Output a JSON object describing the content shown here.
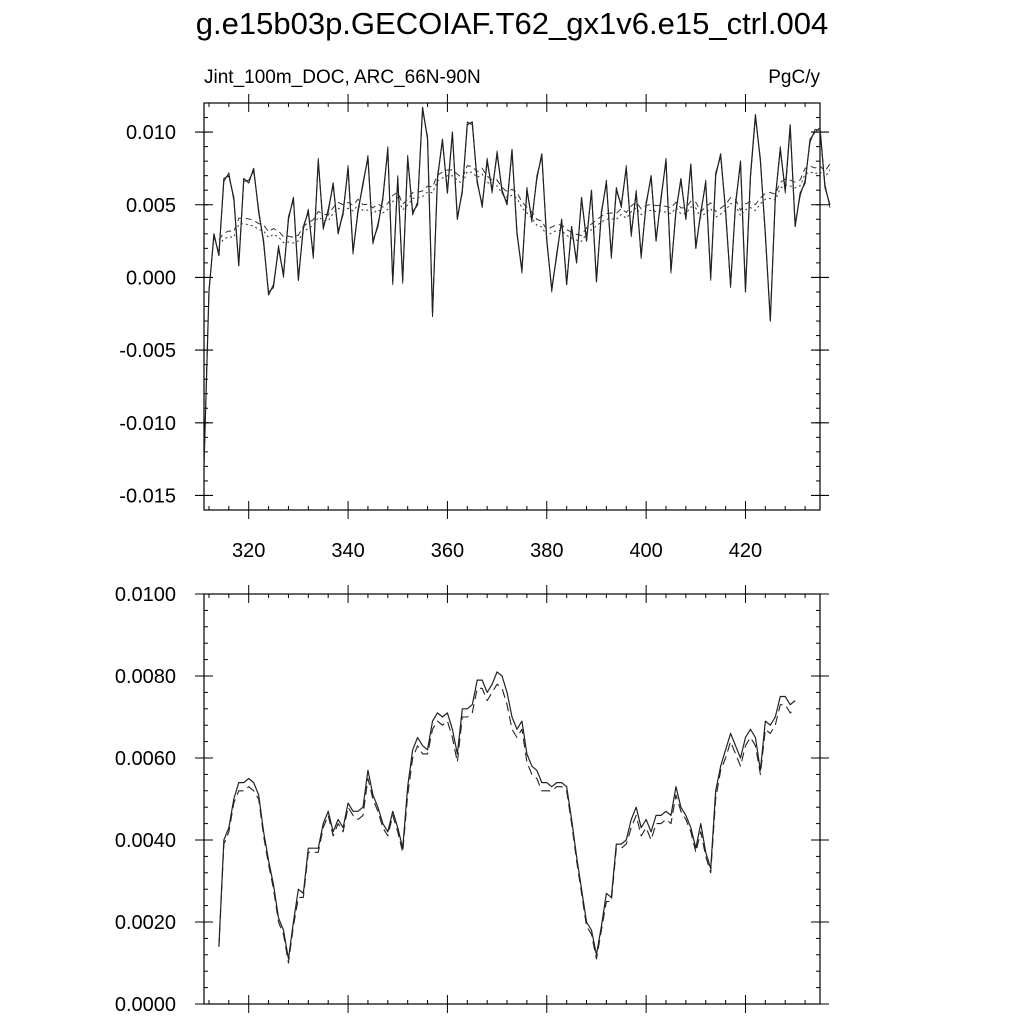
{
  "title": "g.e15b03p.GECOIAF.T62_gx1v6.e15_ctrl.004",
  "chart_data": [
    {
      "type": "line",
      "subtitle_left": "Jint_100m_DOC, ARC_66N-90N",
      "subtitle_right": "PgC/y",
      "xlim": [
        311,
        435
      ],
      "ylim": [
        -0.016,
        0.012
      ],
      "x_ticks": [
        "320",
        "340",
        "360",
        "380",
        "400",
        "420"
      ],
      "y_ticks": [
        "0.010",
        "0.005",
        "0.000",
        "-0.005",
        "-0.010",
        "-0.015"
      ],
      "x_start": 311,
      "series": [
        {
          "style": "solid-thin",
          "values": [
            -0.013,
            -0.001,
            0.003,
            0.0015,
            0.0068,
            0.007,
            0.0055,
            0.0008,
            0.0068,
            0.0065,
            0.0075,
            0.0045,
            0.0025,
            -0.0012,
            -0.0005,
            0.002,
            0.0002,
            0.004,
            0.0055,
            -0.0002,
            0.0035,
            0.0045,
            0.0015,
            0.008,
            0.0035,
            0.0045,
            0.0065,
            0.003,
            0.0045,
            0.0075,
            0.0018,
            0.0045,
            0.0065,
            0.0082,
            0.0025,
            0.0035,
            0.0055,
            0.0088,
            -0.0003,
            0.0068,
            -0.0002,
            0.0082,
            0.0045,
            0.005,
            0.0117,
            0.0095,
            -0.0025,
            0.0068,
            0.0095,
            0.0058,
            0.01,
            0.004,
            0.006,
            0.0105,
            0.0107,
            0.0065,
            0.005,
            0.008,
            0.006,
            0.0085,
            0.006,
            0.005,
            0.0088,
            0.003,
            0.0005,
            0.006,
            0.004,
            0.0068,
            0.0085,
            0.0025,
            -0.0008,
            0.0015,
            0.004,
            -0.0005,
            0.0035,
            0.001,
            0.0055,
            0.0025,
            0.006,
            -0.0003,
            0.0045,
            0.0065,
            0.0015,
            0.006,
            0.005,
            0.0075,
            0.003,
            0.0058,
            0.0015,
            0.005,
            0.007,
            0.0025,
            0.0055,
            0.008,
            0.0005,
            0.0045,
            0.0068,
            0.004,
            0.0078,
            0.002,
            0.0045,
            0.0065,
            0.0,
            0.007,
            0.0085,
            0.0045,
            -0.0005,
            0.005,
            0.008,
            -0.001,
            0.007,
            0.0112,
            0.008,
            0.003,
            -0.003,
            0.0055,
            0.0088,
            0.006,
            0.0105,
            0.0035,
            0.0058,
            0.0065,
            0.0095,
            0.01,
            0.0103,
            0.0062,
            0.005
          ],
          "offset_series": [
            -0.013,
            -0.0008,
            0.0028,
            0.0017,
            0.0066,
            0.0072,
            0.0053,
            0.001,
            0.0066,
            0.0067,
            0.0073,
            0.0047,
            0.0023,
            -0.001,
            -0.0007,
            0.0022,
            0.0,
            0.0042,
            0.0053,
            0.0,
            0.0033,
            0.0047,
            0.0013,
            0.0082,
            0.0033,
            0.0047,
            0.0063,
            0.0032,
            0.0043,
            0.0077,
            0.0016,
            0.0047,
            0.0063,
            0.0084,
            0.0023,
            0.0037,
            0.0053,
            0.009,
            -0.0005,
            0.007,
            -0.0004,
            0.0084,
            0.0043,
            0.0052,
            0.0115,
            0.0097,
            -0.0027,
            0.007,
            0.0093,
            0.006,
            0.0098,
            0.0042,
            0.0058,
            0.0107,
            0.0105,
            0.0067,
            0.0048,
            0.0082,
            0.0058,
            0.0087,
            0.0058,
            0.0052,
            0.0086,
            0.0032,
            0.0003,
            0.0062,
            0.0038,
            0.007,
            0.0083,
            0.0027,
            -0.001,
            0.0017,
            0.0038,
            -0.0003,
            0.0033,
            0.0012,
            0.0053,
            0.0027,
            0.0058,
            -0.0001,
            0.0043,
            0.0067,
            0.0013,
            0.0062,
            0.0048,
            0.0077,
            0.0028,
            0.006,
            0.0013,
            0.0052,
            0.0068,
            0.0027,
            0.0053,
            0.0082,
            0.0003,
            0.0047,
            0.0066,
            0.0042,
            0.0076,
            0.0022,
            0.0043,
            0.0067,
            -0.0002,
            0.0072,
            0.0083,
            0.0047,
            -0.0007,
            0.0052,
            0.0078,
            -0.0008,
            0.0068,
            0.011,
            0.0082,
            0.0028,
            -0.0028,
            0.0053,
            0.009,
            0.0058,
            0.0103,
            0.0037,
            0.0056,
            0.0067,
            0.0093,
            0.0102,
            0.0101,
            0.0064,
            0.0048
          ]
        }
      ]
    },
    {
      "type": "line",
      "xlim": [
        311,
        435
      ],
      "ylim": [
        0.0,
        0.01
      ],
      "y_ticks": [
        "0.0100",
        "0.0080",
        "0.0060",
        "0.0040",
        "0.0020",
        "0.0000"
      ],
      "x_start": 314,
      "series": [
        {
          "style": "solid",
          "values": [
            0.0014,
            0.004,
            0.0043,
            0.005,
            0.0054,
            0.0054,
            0.0055,
            0.0054,
            0.0051,
            0.0042,
            0.0035,
            0.0029,
            0.0021,
            0.0018,
            0.0011,
            0.002,
            0.0028,
            0.0027,
            0.0038,
            0.0038,
            0.0038,
            0.0044,
            0.0047,
            0.0042,
            0.0045,
            0.0043,
            0.0049,
            0.0047,
            0.0047,
            0.0048,
            0.0057,
            0.0051,
            0.0048,
            0.0044,
            0.0042,
            0.0047,
            0.0043,
            0.0038,
            0.0053,
            0.0062,
            0.0065,
            0.0063,
            0.0062,
            0.0069,
            0.0071,
            0.007,
            0.0071,
            0.0067,
            0.0061,
            0.0072,
            0.0072,
            0.0073,
            0.0079,
            0.0079,
            0.0076,
            0.0078,
            0.0081,
            0.008,
            0.0076,
            0.007,
            0.0067,
            0.0069,
            0.0061,
            0.0058,
            0.0057,
            0.0054,
            0.0054,
            0.0053,
            0.0054,
            0.0054,
            0.0053,
            0.0045,
            0.0036,
            0.0028,
            0.002,
            0.0018,
            0.0012,
            0.0019,
            0.0027,
            0.0026,
            0.0039,
            0.0039,
            0.004,
            0.0045,
            0.0048,
            0.0043,
            0.0045,
            0.0042,
            0.0046,
            0.0046,
            0.0047,
            0.0046,
            0.0053,
            0.0048,
            0.0046,
            0.0043,
            0.0038,
            0.0044,
            0.0037,
            0.0033,
            0.0052,
            0.0058,
            0.0062,
            0.0066,
            0.0063,
            0.006,
            0.0065,
            0.0067,
            0.0065,
            0.0057,
            0.0069,
            0.0068,
            0.007,
            0.0075,
            0.0075,
            0.0073,
            0.0074
          ]
        },
        {
          "style": "dashed",
          "values": [
            0.0014,
            0.0039,
            0.0042,
            0.0049,
            0.0052,
            0.0052,
            0.0053,
            0.0052,
            0.005,
            0.0041,
            0.0034,
            0.0028,
            0.002,
            0.0017,
            0.001,
            0.0019,
            0.0026,
            0.0026,
            0.0037,
            0.0037,
            0.0037,
            0.0043,
            0.0046,
            0.0041,
            0.0044,
            0.0042,
            0.0048,
            0.0046,
            0.0045,
            0.0046,
            0.0055,
            0.005,
            0.0047,
            0.0043,
            0.0041,
            0.0046,
            0.0042,
            0.0037,
            0.0051,
            0.006,
            0.0063,
            0.0061,
            0.0061,
            0.0067,
            0.0069,
            0.0068,
            0.0069,
            0.0065,
            0.0059,
            0.007,
            0.007,
            0.0071,
            0.0077,
            0.0077,
            0.0074,
            0.0076,
            0.0078,
            0.0077,
            0.0073,
            0.0067,
            0.0065,
            0.0067,
            0.0059,
            0.0056,
            0.0055,
            0.0052,
            0.0052,
            0.0052,
            0.0053,
            0.0053,
            0.0052,
            0.0044,
            0.0035,
            0.0027,
            0.0019,
            0.0017,
            0.0011,
            0.0018,
            0.0025,
            0.0025,
            0.0038,
            0.0038,
            0.0039,
            0.0043,
            0.0046,
            0.0041,
            0.0043,
            0.004,
            0.0044,
            0.0044,
            0.0045,
            0.0044,
            0.0051,
            0.0047,
            0.0045,
            0.0042,
            0.0037,
            0.0042,
            0.0036,
            0.0032,
            0.005,
            0.0057,
            0.006,
            0.0064,
            0.0061,
            0.0058,
            0.0063,
            0.0065,
            0.0063,
            0.0056,
            0.0067,
            0.0066,
            0.0068,
            0.0073,
            0.0073,
            0.0071,
            0.0072
          ]
        }
      ]
    }
  ]
}
